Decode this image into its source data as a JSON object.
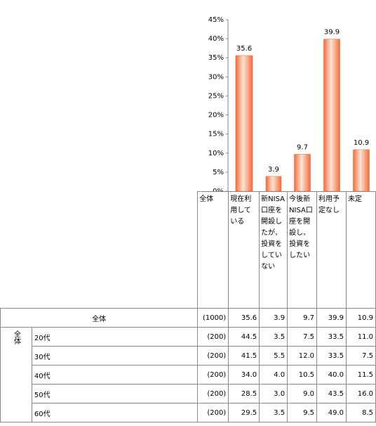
{
  "chart_data": {
    "type": "bar",
    "categories": [
      "現在利用している",
      "新NISA口座を開設したが、投資をしていない",
      "今後新NISA口座を開設し、投資をしたい",
      "利用予定なし",
      "未定"
    ],
    "values": [
      35.6,
      3.9,
      9.7,
      39.9,
      10.9
    ],
    "color": "#f26b3a",
    "ylim": [
      0,
      45
    ],
    "yticks": [
      {
        "value": 0,
        "label": "0%"
      },
      {
        "value": 5,
        "label": "5%"
      },
      {
        "value": 10,
        "label": "10%"
      },
      {
        "value": 15,
        "label": "15%"
      },
      {
        "value": 20,
        "label": "20%"
      },
      {
        "value": 25,
        "label": "25%"
      },
      {
        "value": 30,
        "label": "30%"
      },
      {
        "value": 35,
        "label": "35%"
      },
      {
        "value": 40,
        "label": "40%"
      },
      {
        "value": 45,
        "label": "45%"
      }
    ]
  },
  "table": {
    "n_header": "全体",
    "total_row": {
      "label": "全体",
      "n": "(1000)",
      "cells": [
        "35.6",
        "3.9",
        "9.7",
        "39.9",
        "10.9"
      ]
    },
    "group_label": "全体",
    "rows": [
      {
        "label": "20代",
        "n": "(200)",
        "cells": [
          "44.5",
          "3.5",
          "7.5",
          "33.5",
          "11.0"
        ]
      },
      {
        "label": "30代",
        "n": "(200)",
        "cells": [
          "41.5",
          "5.5",
          "12.0",
          "33.5",
          "7.5"
        ]
      },
      {
        "label": "40代",
        "n": "(200)",
        "cells": [
          "34.0",
          "4.0",
          "10.5",
          "40.0",
          "11.5"
        ]
      },
      {
        "label": "50代",
        "n": "(200)",
        "cells": [
          "28.5",
          "3.0",
          "9.0",
          "43.5",
          "16.0"
        ]
      },
      {
        "label": "60代",
        "n": "(200)",
        "cells": [
          "29.5",
          "3.5",
          "9.5",
          "49.0",
          "8.5"
        ]
      }
    ]
  }
}
